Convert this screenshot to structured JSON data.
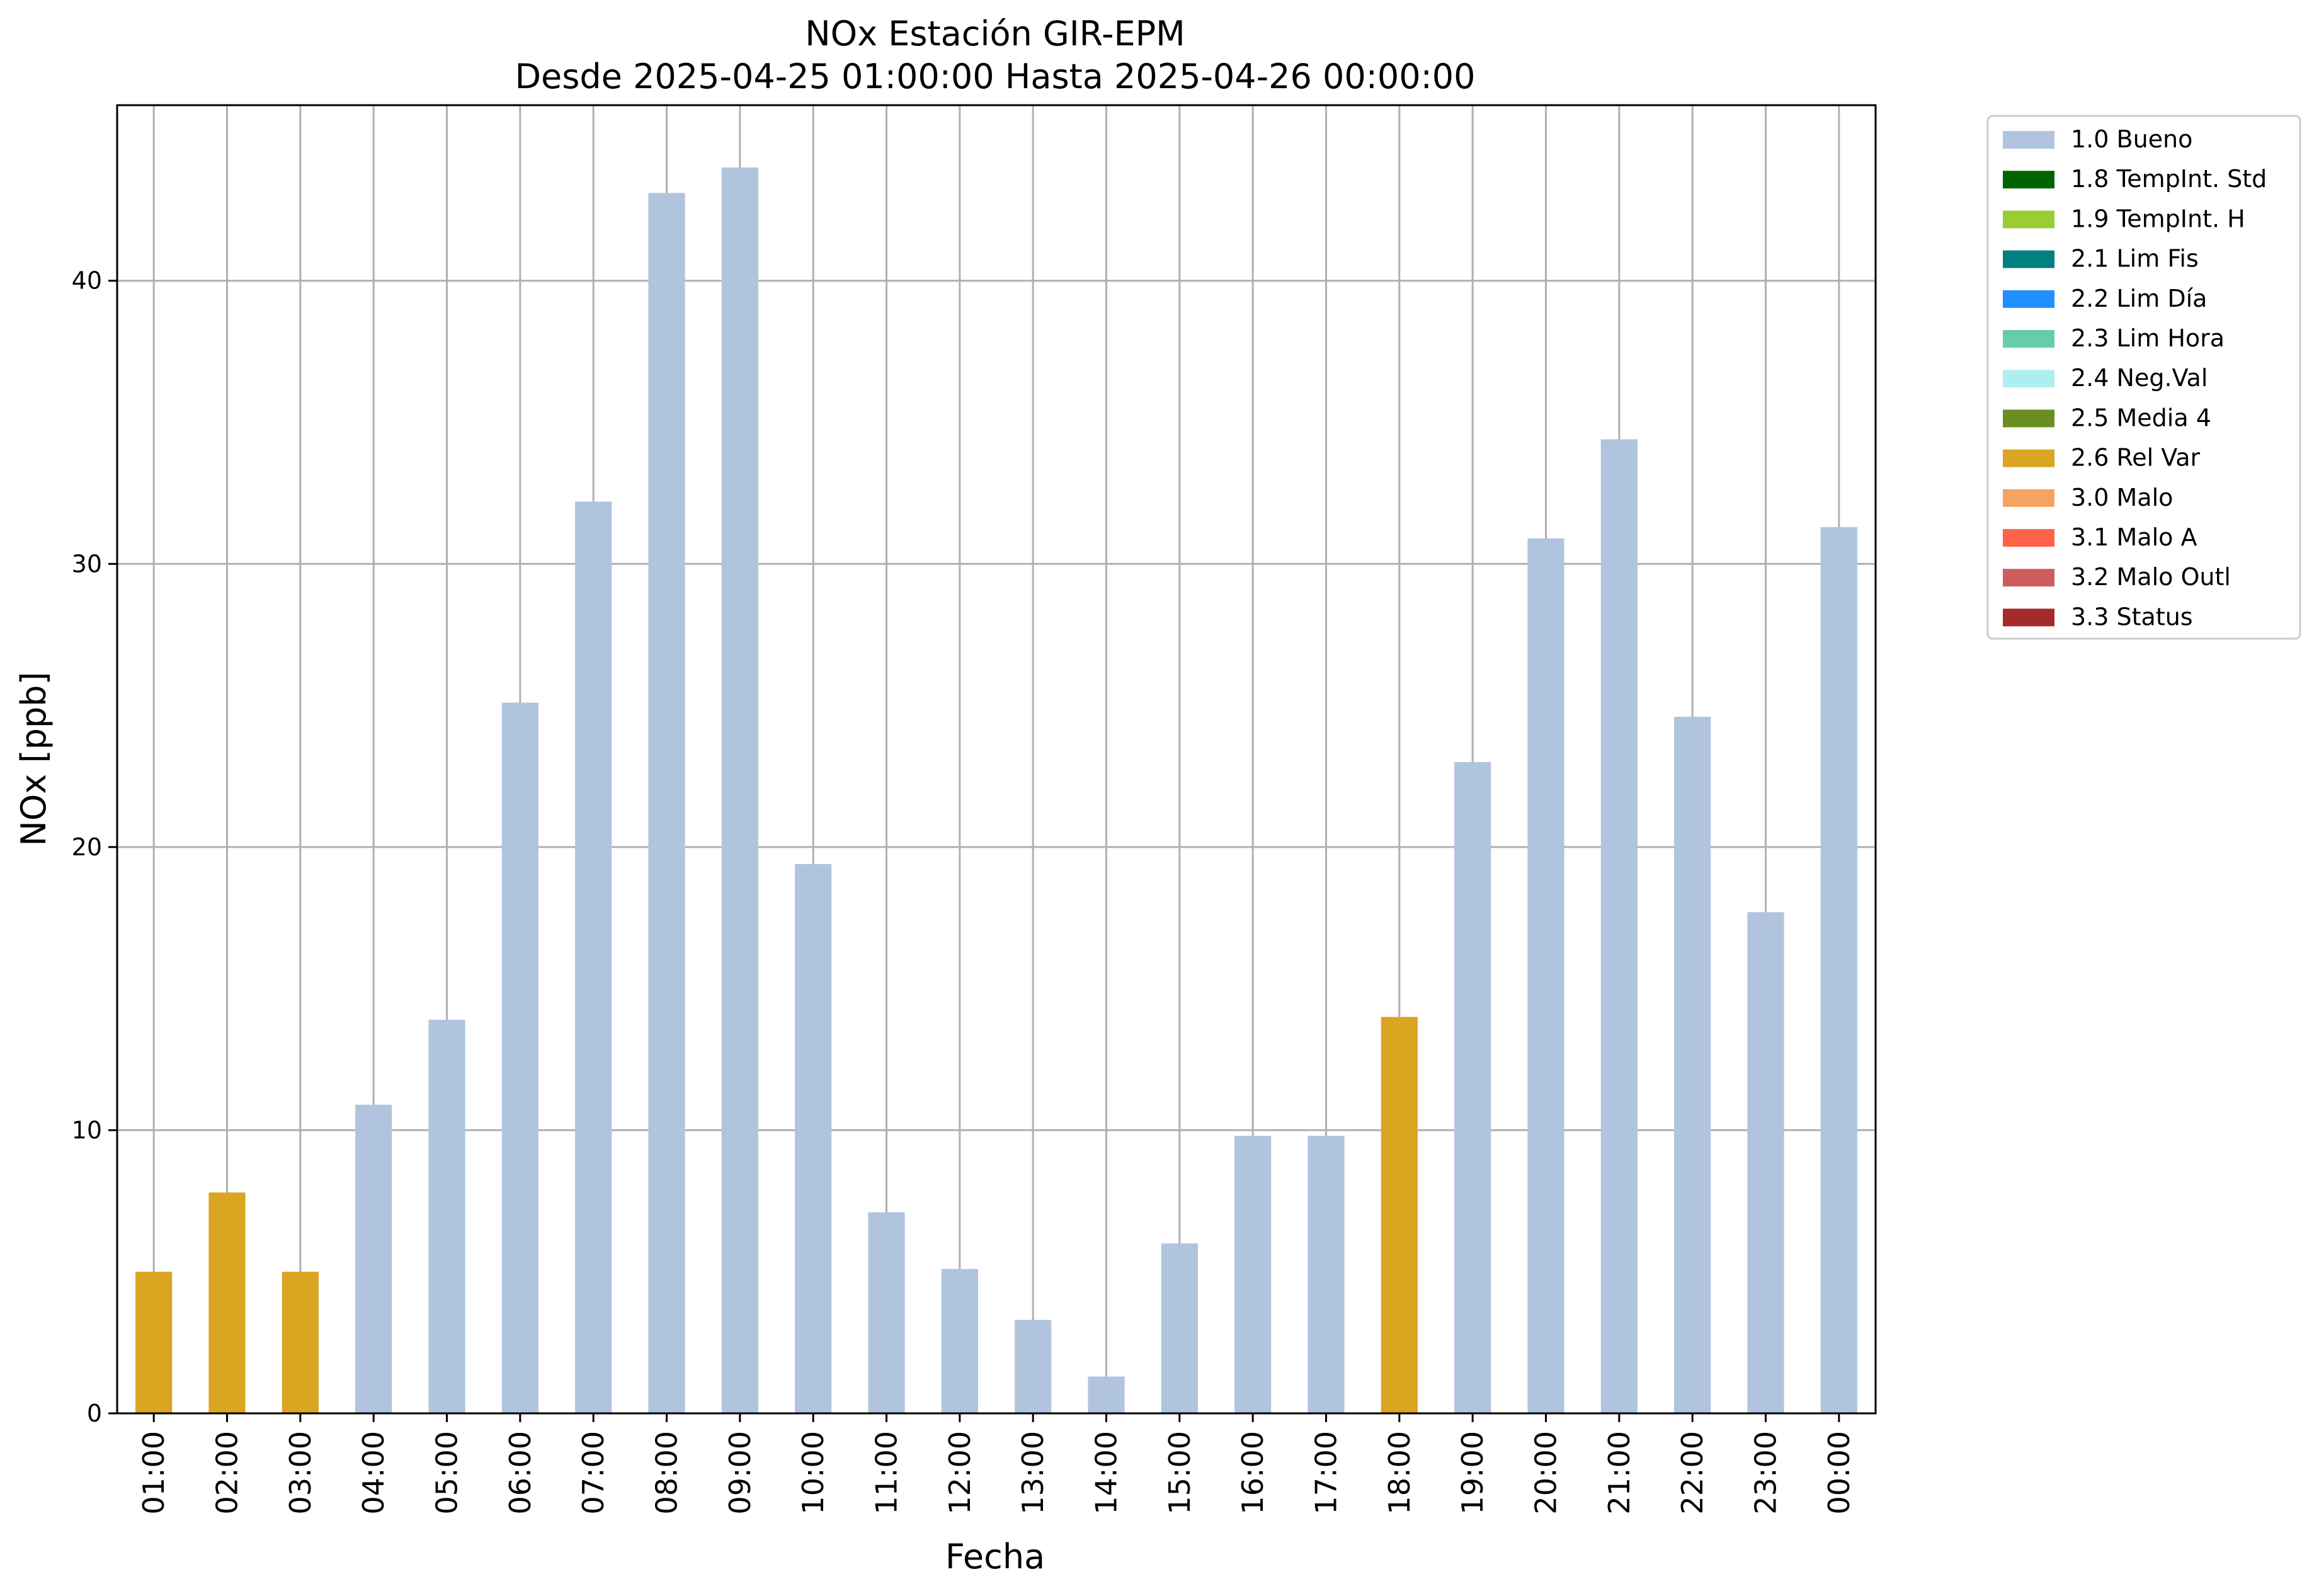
{
  "chart_data": {
    "type": "bar",
    "title": "NOx Estación GIR-EPM",
    "subtitle": "Desde 2025-04-25 01:00:00 Hasta 2025-04-26 00:00:00",
    "xlabel": "Fecha",
    "ylabel": "NOx [ppb]",
    "ylim": [
      0,
      46.2
    ],
    "yticks": [
      0,
      10,
      20,
      30,
      40
    ],
    "grid": true,
    "legend_position": "outside-top-right",
    "categories": [
      "01:00",
      "02:00",
      "03:00",
      "04:00",
      "05:00",
      "06:00",
      "07:00",
      "08:00",
      "09:00",
      "10:00",
      "11:00",
      "12:00",
      "13:00",
      "14:00",
      "15:00",
      "16:00",
      "17:00",
      "18:00",
      "19:00",
      "20:00",
      "21:00",
      "22:00",
      "23:00",
      "00:00"
    ],
    "values": [
      5.0,
      7.8,
      5.0,
      10.9,
      13.9,
      25.1,
      32.2,
      43.1,
      44.0,
      19.4,
      7.1,
      5.1,
      3.3,
      1.3,
      6.0,
      9.8,
      9.8,
      14.0,
      23.0,
      30.9,
      34.4,
      24.6,
      17.7,
      31.3
    ],
    "flags": [
      "2.6 Rel Var",
      "2.6 Rel Var",
      "2.6 Rel Var",
      "1.0 Bueno",
      "1.0 Bueno",
      "1.0 Bueno",
      "1.0 Bueno",
      "1.0 Bueno",
      "1.0 Bueno",
      "1.0 Bueno",
      "1.0 Bueno",
      "1.0 Bueno",
      "1.0 Bueno",
      "1.0 Bueno",
      "1.0 Bueno",
      "1.0 Bueno",
      "1.0 Bueno",
      "2.6 Rel Var",
      "1.0 Bueno",
      "1.0 Bueno",
      "1.0 Bueno",
      "1.0 Bueno",
      "1.0 Bueno",
      "1.0 Bueno"
    ],
    "legend": [
      {
        "label": "1.0 Bueno",
        "color": "#b0c4de"
      },
      {
        "label": "1.8 TempInt. Std",
        "color": "#006400"
      },
      {
        "label": "1.9 TempInt. H",
        "color": "#9acd32"
      },
      {
        "label": "2.1 Lim Fis",
        "color": "#008080"
      },
      {
        "label": "2.2 Lim Día",
        "color": "#1e90ff"
      },
      {
        "label": "2.3 Lim Hora",
        "color": "#66cdaa"
      },
      {
        "label": "2.4 Neg.Val",
        "color": "#afeeee"
      },
      {
        "label": "2.5 Media 4",
        "color": "#6b8e23"
      },
      {
        "label": "2.6 Rel Var",
        "color": "#daa520"
      },
      {
        "label": "3.0 Malo",
        "color": "#f4a460"
      },
      {
        "label": "3.1 Malo A",
        "color": "#ff6347"
      },
      {
        "label": "3.2 Malo Outl",
        "color": "#cd5c5c"
      },
      {
        "label": "3.3 Status",
        "color": "#a52a2a"
      }
    ]
  }
}
